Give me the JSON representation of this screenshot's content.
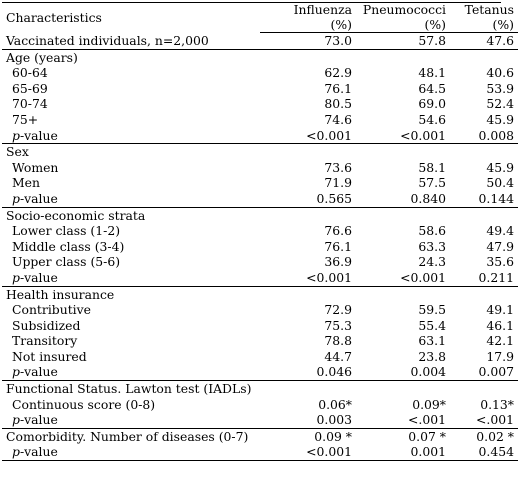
{
  "header": {
    "characteristics": "Characteristics",
    "col1": "Influenza",
    "col2": "Pneumococci",
    "col3": "Tetanus",
    "unit": "(%)"
  },
  "vaccinated": {
    "label": "Vaccinated individuals, n=2,000",
    "v1": "73.0",
    "v2": "57.8",
    "v3": "47.6"
  },
  "age": {
    "title": "Age (years)",
    "rows": [
      {
        "label": "60-64",
        "v1": "62.9",
        "v2": "48.1",
        "v3": "40.6"
      },
      {
        "label": "65-69",
        "v1": "76.1",
        "v2": "64.5",
        "v3": "53.9"
      },
      {
        "label": "70-74",
        "v1": "80.5",
        "v2": "69.0",
        "v3": "52.4"
      },
      {
        "label": "75+",
        "v1": "74.6",
        "v2": "54.6",
        "v3": "45.9"
      }
    ],
    "pvalue": {
      "p": "p",
      "label": "-value",
      "v1": "<0.001",
      "v2": "<0.001",
      "v3": "0.008"
    }
  },
  "sex": {
    "title": "Sex",
    "rows": [
      {
        "label": "Women",
        "v1": "73.6",
        "v2": "58.1",
        "v3": "45.9"
      },
      {
        "label": "Men",
        "v1": "71.9",
        "v2": "57.5",
        "v3": "50.4"
      }
    ],
    "pvalue": {
      "p": "p",
      "label": "-value",
      "v1": "0.565",
      "v2": "0.840",
      "v3": "0.144"
    }
  },
  "ses": {
    "title": "Socio-economic strata",
    "rows": [
      {
        "label": "Lower class (1-2)",
        "v1": "76.6",
        "v2": "58.6",
        "v3": "49.4"
      },
      {
        "label": "Middle class (3-4)",
        "v1": "76.1",
        "v2": "63.3",
        "v3": "47.9"
      },
      {
        "label": "Upper class (5-6)",
        "v1": "36.9",
        "v2": "24.3",
        "v3": "35.6"
      }
    ],
    "pvalue": {
      "p": "p",
      "label": "-value",
      "v1": "<0.001",
      "v2": "<0.001",
      "v3": "0.211"
    }
  },
  "insurance": {
    "title": "Health insurance",
    "rows": [
      {
        "label": "Contributive",
        "v1": "72.9",
        "v2": "59.5",
        "v3": "49.1"
      },
      {
        "label": "Subsidized",
        "v1": "75.3",
        "v2": "55.4",
        "v3": "46.1"
      },
      {
        "label": "Transitory",
        "v1": "78.8",
        "v2": "63.1",
        "v3": "42.1"
      },
      {
        "label": "Not insured",
        "v1": "44.7",
        "v2": "23.8",
        "v3": "17.9"
      }
    ],
    "pvalue": {
      "p": "p",
      "label": "-value",
      "v1": "0.046",
      "v2": "0.004",
      "v3": "0.007"
    }
  },
  "functional": {
    "title": "Functional Status. Lawton test (IADLs)",
    "rows": [
      {
        "label": "Continuous score (0-8)",
        "v1": "0.06*",
        "v2": "0.09*",
        "v3": "0.13*"
      }
    ],
    "pvalue": {
      "p": "p",
      "label": "-value",
      "v1": "0.003",
      "v2": "<.001",
      "v3": "<.001"
    }
  },
  "comorbidity": {
    "title": "Comorbidity.  Number of diseases (0-7)",
    "v1": "0.09 *",
    "v2": "0.07 *",
    "v3": "0.02 *",
    "pvalue": {
      "p": "p",
      "label": "-value",
      "v1": "<0.001",
      "v2": "0.001",
      "v3": "0.454"
    }
  }
}
